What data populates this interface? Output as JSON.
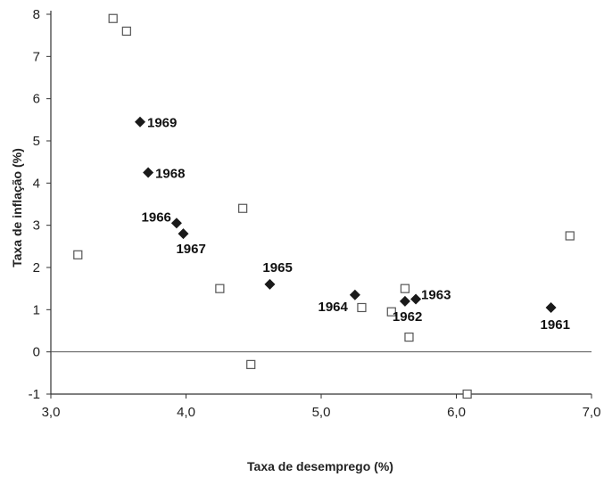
{
  "chart_data": {
    "type": "scatter",
    "xlabel": "Taxa de desemprego (%)",
    "ylabel": "Taxa de inflação (%)",
    "xlim": [
      3.0,
      7.0
    ],
    "ylim": [
      -1,
      8
    ],
    "x_ticks": [
      "3,0",
      "4,0",
      "5,0",
      "6,0",
      "7,0"
    ],
    "y_ticks": [
      "-1",
      "0",
      "1",
      "2",
      "3",
      "4",
      "5",
      "6",
      "7",
      "8"
    ],
    "x_tick_values": [
      3.0,
      4.0,
      5.0,
      6.0,
      7.0
    ],
    "y_tick_values": [
      -1,
      0,
      1,
      2,
      3,
      4,
      5,
      6,
      7,
      8
    ],
    "zero_line": true,
    "series": [
      {
        "marker": "filled-diamond",
        "color": "#1a1a1a",
        "points": [
          {
            "x": 6.7,
            "y": 1.05,
            "label": "1961"
          },
          {
            "x": 5.62,
            "y": 1.2,
            "label": "1962"
          },
          {
            "x": 5.7,
            "y": 1.25,
            "label": "1963"
          },
          {
            "x": 5.25,
            "y": 1.35,
            "label": "1964"
          },
          {
            "x": 4.62,
            "y": 1.6,
            "label": "1965"
          },
          {
            "x": 3.93,
            "y": 3.05,
            "label": "1966"
          },
          {
            "x": 3.98,
            "y": 2.8,
            "label": "1967"
          },
          {
            "x": 3.72,
            "y": 4.25,
            "label": "1968"
          },
          {
            "x": 3.66,
            "y": 5.45,
            "label": "1969"
          }
        ]
      },
      {
        "marker": "open-square",
        "color": "#555555",
        "points": [
          {
            "x": 3.2,
            "y": 2.3
          },
          {
            "x": 3.46,
            "y": 7.9
          },
          {
            "x": 3.56,
            "y": 7.6
          },
          {
            "x": 4.25,
            "y": 1.5
          },
          {
            "x": 4.42,
            "y": 3.4
          },
          {
            "x": 4.48,
            "y": -0.3
          },
          {
            "x": 5.3,
            "y": 1.05
          },
          {
            "x": 5.52,
            "y": 0.95
          },
          {
            "x": 5.62,
            "y": 1.5
          },
          {
            "x": 5.65,
            "y": 0.35
          },
          {
            "x": 6.08,
            "y": -1.0
          },
          {
            "x": 6.84,
            "y": 2.75
          }
        ]
      }
    ]
  }
}
